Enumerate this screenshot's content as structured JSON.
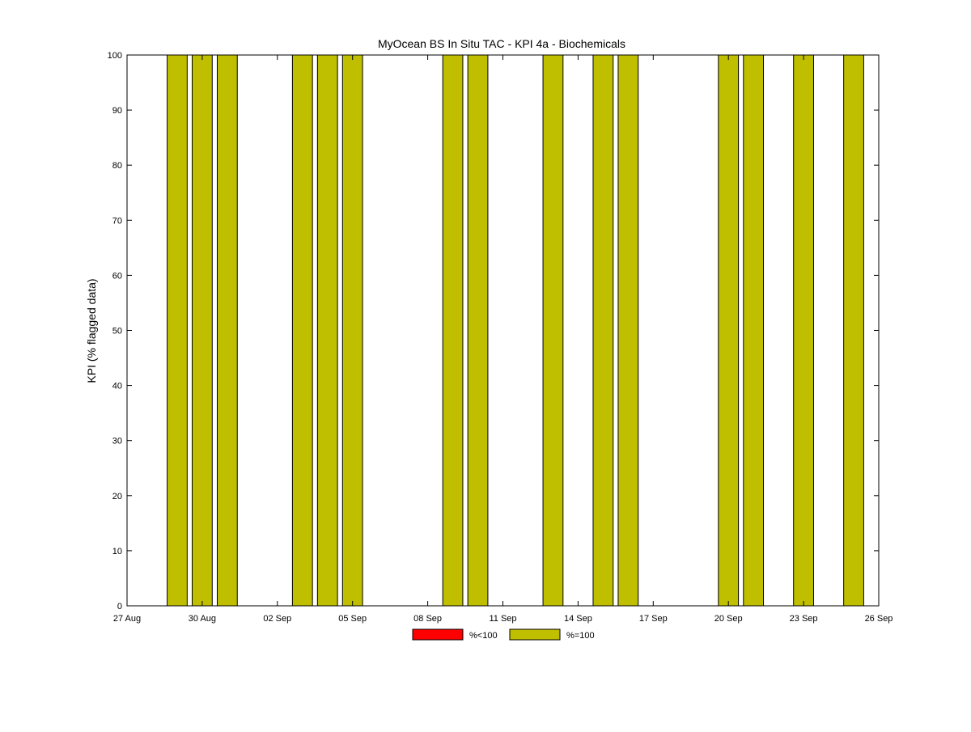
{
  "chart_data": {
    "type": "bar",
    "title": "MyOcean  BS In Situ TAC - KPI 4a - Biochemicals",
    "xlabel": "",
    "ylabel": "KPI (% flagged data)",
    "ylim": [
      0,
      100
    ],
    "yticks": [
      "0",
      "10",
      "20",
      "30",
      "40",
      "50",
      "60",
      "70",
      "80",
      "90",
      "100"
    ],
    "xlim": [
      "2012-08-27",
      "2012-09-26"
    ],
    "xticks": [
      {
        "date": "2012-08-27",
        "label": "27 Aug"
      },
      {
        "date": "2012-08-30",
        "label": "30 Aug"
      },
      {
        "date": "2012-09-02",
        "label": "02 Sep"
      },
      {
        "date": "2012-09-05",
        "label": "05 Sep"
      },
      {
        "date": "2012-09-08",
        "label": "08 Sep"
      },
      {
        "date": "2012-09-11",
        "label": "11 Sep"
      },
      {
        "date": "2012-09-14",
        "label": "14 Sep"
      },
      {
        "date": "2012-09-17",
        "label": "17 Sep"
      },
      {
        "date": "2012-09-20",
        "label": "20 Sep"
      },
      {
        "date": "2012-09-23",
        "label": "23 Sep"
      },
      {
        "date": "2012-09-26",
        "label": "26 Sep"
      }
    ],
    "grid": false,
    "legend_position": "bottom-center",
    "series": [
      {
        "name": "%<100",
        "color": "#ff0000",
        "dates": [],
        "values": []
      },
      {
        "name": "%=100",
        "color": "#bfbf00",
        "dates": [
          "2012-08-29",
          "2012-08-30",
          "2012-08-31",
          "2012-09-03",
          "2012-09-04",
          "2012-09-05",
          "2012-09-09",
          "2012-09-10",
          "2012-09-13",
          "2012-09-15",
          "2012-09-16",
          "2012-09-20",
          "2012-09-21",
          "2012-09-23",
          "2012-09-25"
        ],
        "values": [
          100,
          100,
          100,
          100,
          100,
          100,
          100,
          100,
          100,
          100,
          100,
          100,
          100,
          100,
          100
        ]
      }
    ]
  }
}
